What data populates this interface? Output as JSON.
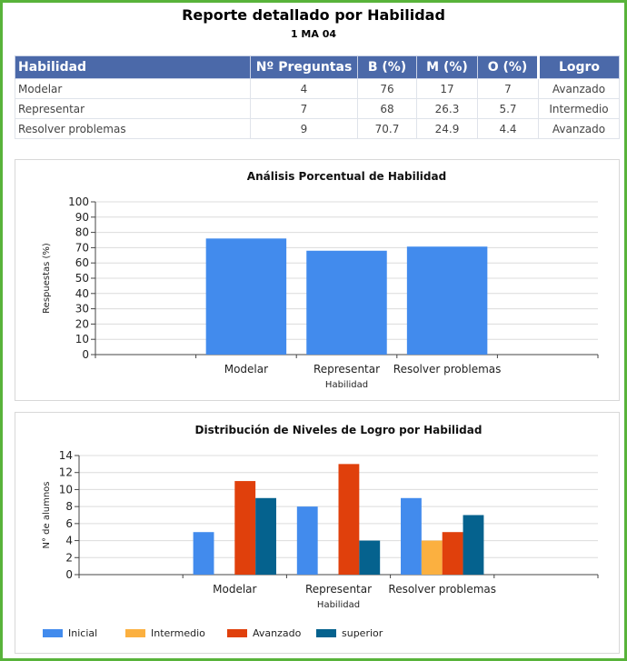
{
  "report": {
    "title": "Reporte detallado por Habilidad",
    "subtitle": "1 MA 04"
  },
  "table": {
    "headers": [
      "Habilidad",
      "Nº Preguntas",
      "B (%)",
      "M (%)",
      "O (%)",
      "Logro"
    ],
    "rows": [
      {
        "habilidad": "Modelar",
        "preguntas": "4",
        "b": "76",
        "m": "17",
        "o": "7",
        "logro": "Avanzado"
      },
      {
        "habilidad": "Representar",
        "preguntas": "7",
        "b": "68",
        "m": "26.3",
        "o": "5.7",
        "logro": "Intermedio"
      },
      {
        "habilidad": "Resolver problemas",
        "preguntas": "9",
        "b": "70.7",
        "m": "24.9",
        "o": "4.4",
        "logro": "Avanzado"
      }
    ]
  },
  "chart_data": [
    {
      "type": "bar",
      "title": "Análisis Porcentual de Habilidad",
      "xlabel": "Habilidad",
      "ylabel": "Respuestas (%)",
      "categories": [
        "Modelar",
        "Representar",
        "Resolver problemas"
      ],
      "values": [
        76,
        68,
        70.7
      ],
      "ylim": [
        0,
        100
      ],
      "yticks": [
        0,
        10,
        20,
        30,
        40,
        50,
        60,
        70,
        80,
        90,
        100
      ],
      "color": "#428bed",
      "grid": true
    },
    {
      "type": "bar",
      "title": "Distribución de Niveles de Logro por Habilidad",
      "xlabel": "Habilidad",
      "ylabel": "N° de alumnos",
      "categories": [
        "Modelar",
        "Representar",
        "Resolver problemas"
      ],
      "series": [
        {
          "name": "Inicial",
          "values": [
            5,
            8,
            9
          ],
          "color": "#428bed"
        },
        {
          "name": "Intermedio",
          "values": [
            0,
            0,
            4
          ],
          "color": "#fbb040"
        },
        {
          "name": "Avanzado",
          "values": [
            11,
            13,
            5
          ],
          "color": "#e0400c"
        },
        {
          "name": "superior",
          "values": [
            9,
            4,
            7
          ],
          "color": "#05628e"
        }
      ],
      "ylim": [
        0,
        14
      ],
      "yticks": [
        0,
        2,
        4,
        6,
        8,
        10,
        12,
        14
      ],
      "legend": "bottom-left",
      "grid": true
    }
  ]
}
